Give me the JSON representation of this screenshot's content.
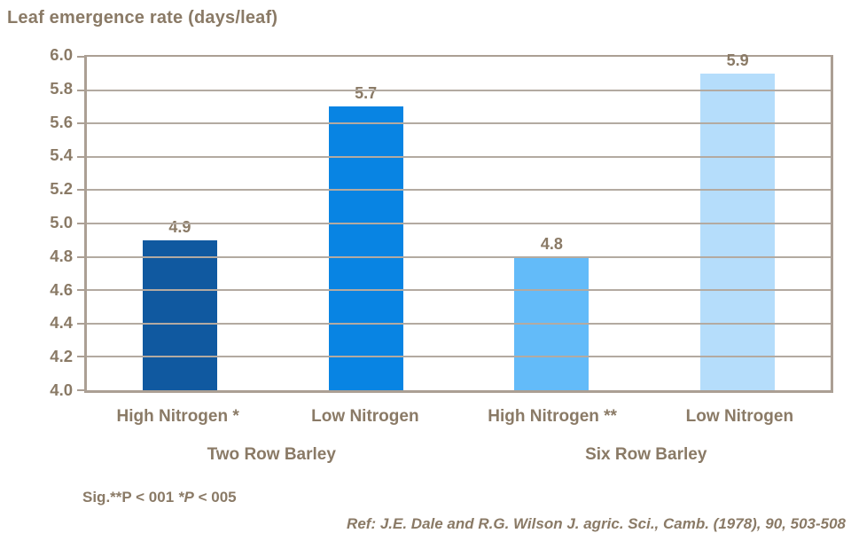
{
  "title": "Leaf emergence rate (days/leaf)",
  "chart_data": {
    "type": "bar",
    "title": "Leaf emergence rate (days/leaf)",
    "ylabel": "Leaf emergence rate (days/leaf)",
    "xlabel": "",
    "categories": [
      "High Nitrogen *",
      "Low Nitrogen",
      "High Nitrogen **",
      "Low Nitrogen"
    ],
    "values": [
      4.9,
      5.7,
      4.8,
      5.9
    ],
    "value_labels": [
      "4.9",
      "5.7",
      "4.8",
      "5.9"
    ],
    "bar_colors": [
      "#1059a0",
      "#0884e3",
      "#63bbf9",
      "#b5ddfb"
    ],
    "group_labels": [
      "Two Row Barley",
      "Six Row Barley"
    ],
    "ylim": [
      4.0,
      6.0
    ],
    "ytick_step": 0.2,
    "yticks": [
      "6.0",
      "5.8",
      "5.6",
      "5.4",
      "5.2",
      "5.0",
      "4.8",
      "4.6",
      "4.4",
      "4.2",
      "4.0"
    ],
    "grid": true,
    "legend": "none"
  },
  "footnotes": {
    "significance": {
      "prefix": "Sig.**P < 001 ",
      "italic": "*P",
      "suffix": " < 005"
    },
    "reference": "Ref: J.E. Dale and R.G. Wilson J. agric. Sci., Camb. (1978), 90, 503-508"
  },
  "colors": {
    "text": "#8a7a66",
    "grid": "#b3aaa1",
    "axis": "#ab9f94",
    "background": "#ffffff"
  }
}
